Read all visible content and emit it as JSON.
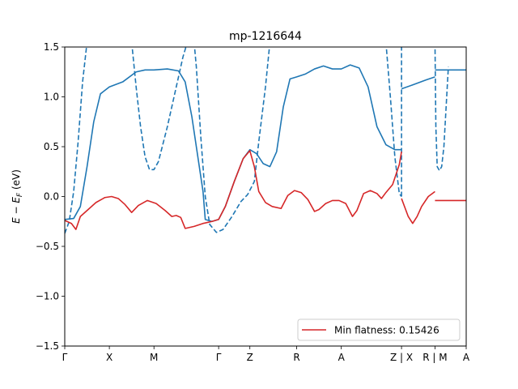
{
  "chart_data": {
    "type": "line",
    "title": "mp-1216644",
    "xlabel": "",
    "ylabel": "E − E_F (eV)",
    "ylabel_parts": {
      "base": "E − E",
      "sub": "F",
      "unit": " (eV)"
    },
    "ylim": [
      -1.5,
      1.5
    ],
    "xlim": [
      0,
      9
    ],
    "grid": false,
    "legend": {
      "position": "lower-right",
      "entries": [
        "Min flatness: 0.15426"
      ]
    },
    "x_ticks": [
      {
        "x": 0.0,
        "label": "Γ"
      },
      {
        "x": 1.0,
        "label": "X"
      },
      {
        "x": 2.0,
        "label": "M"
      },
      {
        "x": 3.45,
        "label": "Γ"
      },
      {
        "x": 4.15,
        "label": "Z"
      },
      {
        "x": 5.2,
        "label": "R"
      },
      {
        "x": 6.2,
        "label": "A"
      },
      {
        "x": 7.55,
        "label": "Z | X"
      },
      {
        "x": 8.3,
        "label": "R | M"
      },
      {
        "x": 9.0,
        "label": "A"
      }
    ],
    "y_ticks": [
      {
        "y": -1.5,
        "label": "−1.5"
      },
      {
        "y": -1.0,
        "label": "−1.0"
      },
      {
        "y": -0.5,
        "label": "−0.5"
      },
      {
        "y": 0.0,
        "label": "0.0"
      },
      {
        "y": 0.5,
        "label": "0.5"
      },
      {
        "y": 1.0,
        "label": "1.0"
      },
      {
        "y": 1.5,
        "label": "1.5"
      }
    ],
    "series": [
      {
        "color": "#1f77b4",
        "style": "solid",
        "points": [
          [
            0,
            -0.23
          ],
          [
            0.2,
            -0.22
          ],
          [
            0.35,
            -0.1
          ],
          [
            0.5,
            0.3
          ],
          [
            0.65,
            0.75
          ],
          [
            0.8,
            1.03
          ],
          [
            1.0,
            1.1
          ],
          [
            1.3,
            1.15
          ],
          [
            1.6,
            1.25
          ],
          [
            1.8,
            1.27
          ],
          [
            2.0,
            1.27
          ],
          [
            2.3,
            1.28
          ],
          [
            2.55,
            1.26
          ],
          [
            2.7,
            1.15
          ],
          [
            2.85,
            0.8
          ],
          [
            3.0,
            0.35
          ],
          [
            3.1,
            0.05
          ],
          [
            3.15,
            -0.23
          ],
          [
            3.3,
            -0.25
          ],
          [
            3.45,
            -0.23
          ],
          [
            3.6,
            -0.1
          ],
          [
            3.8,
            0.15
          ],
          [
            4.0,
            0.38
          ],
          [
            4.15,
            0.47
          ],
          [
            4.3,
            0.43
          ],
          [
            4.45,
            0.33
          ],
          [
            4.6,
            0.3
          ],
          [
            4.75,
            0.45
          ],
          [
            4.9,
            0.9
          ],
          [
            5.05,
            1.18
          ],
          [
            5.2,
            1.2
          ],
          [
            5.4,
            1.23
          ],
          [
            5.6,
            1.28
          ],
          [
            5.8,
            1.31
          ],
          [
            6.0,
            1.28
          ],
          [
            6.2,
            1.28
          ],
          [
            6.4,
            1.32
          ],
          [
            6.6,
            1.29
          ],
          [
            6.8,
            1.1
          ],
          [
            7.0,
            0.7
          ],
          [
            7.2,
            0.52
          ],
          [
            7.4,
            0.47
          ],
          [
            7.55,
            0.47
          ]
        ]
      },
      {
        "color": "#1f77b4",
        "style": "solid",
        "points": [
          [
            7.55,
            1.08
          ],
          [
            7.8,
            1.12
          ],
          [
            8.1,
            1.17
          ],
          [
            8.3,
            1.2
          ]
        ]
      },
      {
        "color": "#1f77b4",
        "style": "solid",
        "points": [
          [
            8.3,
            1.27
          ],
          [
            8.6,
            1.27
          ],
          [
            9.0,
            1.27
          ]
        ]
      },
      {
        "color": "#1f77b4",
        "style": "dashed",
        "points": [
          [
            0,
            -0.37
          ],
          [
            0.1,
            -0.25
          ],
          [
            0.2,
            0.05
          ],
          [
            0.3,
            0.55
          ],
          [
            0.4,
            1.15
          ],
          [
            0.5,
            1.55
          ]
        ]
      },
      {
        "color": "#1f77b4",
        "style": "dashed",
        "points": [
          [
            1.5,
            1.55
          ],
          [
            1.6,
            1.1
          ],
          [
            1.7,
            0.7
          ],
          [
            1.8,
            0.4
          ],
          [
            1.9,
            0.27
          ],
          [
            2.0,
            0.27
          ],
          [
            2.1,
            0.35
          ],
          [
            2.3,
            0.7
          ],
          [
            2.5,
            1.1
          ],
          [
            2.65,
            1.4
          ],
          [
            2.75,
            1.55
          ]
        ]
      },
      {
        "color": "#1f77b4",
        "style": "dashed",
        "points": [
          [
            2.9,
            1.55
          ],
          [
            2.95,
            1.3
          ],
          [
            3.05,
            0.6
          ],
          [
            3.15,
            0.0
          ],
          [
            3.25,
            -0.28
          ],
          [
            3.4,
            -0.36
          ],
          [
            3.55,
            -0.33
          ],
          [
            3.75,
            -0.2
          ],
          [
            3.95,
            -0.05
          ],
          [
            4.1,
            0.02
          ],
          [
            4.25,
            0.15
          ],
          [
            4.35,
            0.55
          ],
          [
            4.5,
            1.1
          ],
          [
            4.6,
            1.55
          ]
        ]
      },
      {
        "color": "#1f77b4",
        "style": "dashed",
        "points": [
          [
            7.2,
            1.55
          ],
          [
            7.3,
            1.0
          ],
          [
            7.4,
            0.4
          ],
          [
            7.5,
            0.03
          ],
          [
            7.55,
            0.0
          ]
        ]
      },
      {
        "color": "#1f77b4",
        "style": "dashed",
        "points": [
          [
            7.55,
            0.0
          ],
          [
            7.55,
            1.55
          ]
        ]
      },
      {
        "color": "#1f77b4",
        "style": "dashed",
        "points": [
          [
            8.3,
            1.55
          ],
          [
            8.32,
            0.7
          ],
          [
            8.35,
            0.3
          ],
          [
            8.4,
            0.26
          ],
          [
            8.45,
            0.3
          ],
          [
            8.5,
            0.5
          ],
          [
            8.55,
            0.9
          ],
          [
            8.6,
            1.3
          ]
        ]
      },
      {
        "name": "Min flatness: 0.15426",
        "color": "#d62728",
        "style": "solid",
        "points": [
          [
            0,
            -0.24
          ],
          [
            0.15,
            -0.27
          ],
          [
            0.25,
            -0.33
          ],
          [
            0.35,
            -0.2
          ],
          [
            0.5,
            -0.14
          ],
          [
            0.7,
            -0.06
          ],
          [
            0.9,
            -0.01
          ],
          [
            1.05,
            0.0
          ],
          [
            1.2,
            -0.02
          ],
          [
            1.35,
            -0.08
          ],
          [
            1.5,
            -0.16
          ],
          [
            1.65,
            -0.09
          ],
          [
            1.85,
            -0.04
          ],
          [
            2.05,
            -0.07
          ],
          [
            2.25,
            -0.14
          ],
          [
            2.4,
            -0.2
          ],
          [
            2.5,
            -0.19
          ],
          [
            2.6,
            -0.21
          ],
          [
            2.7,
            -0.32
          ],
          [
            2.9,
            -0.3
          ],
          [
            3.1,
            -0.27
          ],
          [
            3.3,
            -0.25
          ],
          [
            3.45,
            -0.23
          ],
          [
            3.6,
            -0.1
          ],
          [
            3.8,
            0.15
          ],
          [
            4.0,
            0.38
          ],
          [
            4.15,
            0.46
          ],
          [
            4.25,
            0.3
          ],
          [
            4.35,
            0.05
          ],
          [
            4.5,
            -0.06
          ],
          [
            4.65,
            -0.1
          ],
          [
            4.85,
            -0.12
          ],
          [
            5.0,
            0.01
          ],
          [
            5.15,
            0.06
          ],
          [
            5.3,
            0.04
          ],
          [
            5.45,
            -0.03
          ],
          [
            5.6,
            -0.15
          ],
          [
            5.7,
            -0.13
          ],
          [
            5.85,
            -0.07
          ],
          [
            6.0,
            -0.04
          ],
          [
            6.15,
            -0.04
          ],
          [
            6.3,
            -0.07
          ],
          [
            6.45,
            -0.2
          ],
          [
            6.55,
            -0.14
          ],
          [
            6.7,
            0.03
          ],
          [
            6.85,
            0.06
          ],
          [
            7.0,
            0.03
          ],
          [
            7.1,
            -0.02
          ],
          [
            7.2,
            0.04
          ],
          [
            7.35,
            0.12
          ],
          [
            7.5,
            0.32
          ],
          [
            7.55,
            0.45
          ]
        ]
      },
      {
        "color": "#d62728",
        "style": "solid",
        "points": [
          [
            7.55,
            -0.02
          ],
          [
            7.7,
            -0.2
          ],
          [
            7.8,
            -0.27
          ],
          [
            7.9,
            -0.2
          ],
          [
            8.0,
            -0.1
          ],
          [
            8.15,
            0.0
          ],
          [
            8.3,
            0.05
          ]
        ]
      },
      {
        "color": "#d62728",
        "style": "solid",
        "points": [
          [
            8.3,
            -0.04
          ],
          [
            8.6,
            -0.04
          ],
          [
            9.0,
            -0.04
          ]
        ]
      }
    ]
  }
}
